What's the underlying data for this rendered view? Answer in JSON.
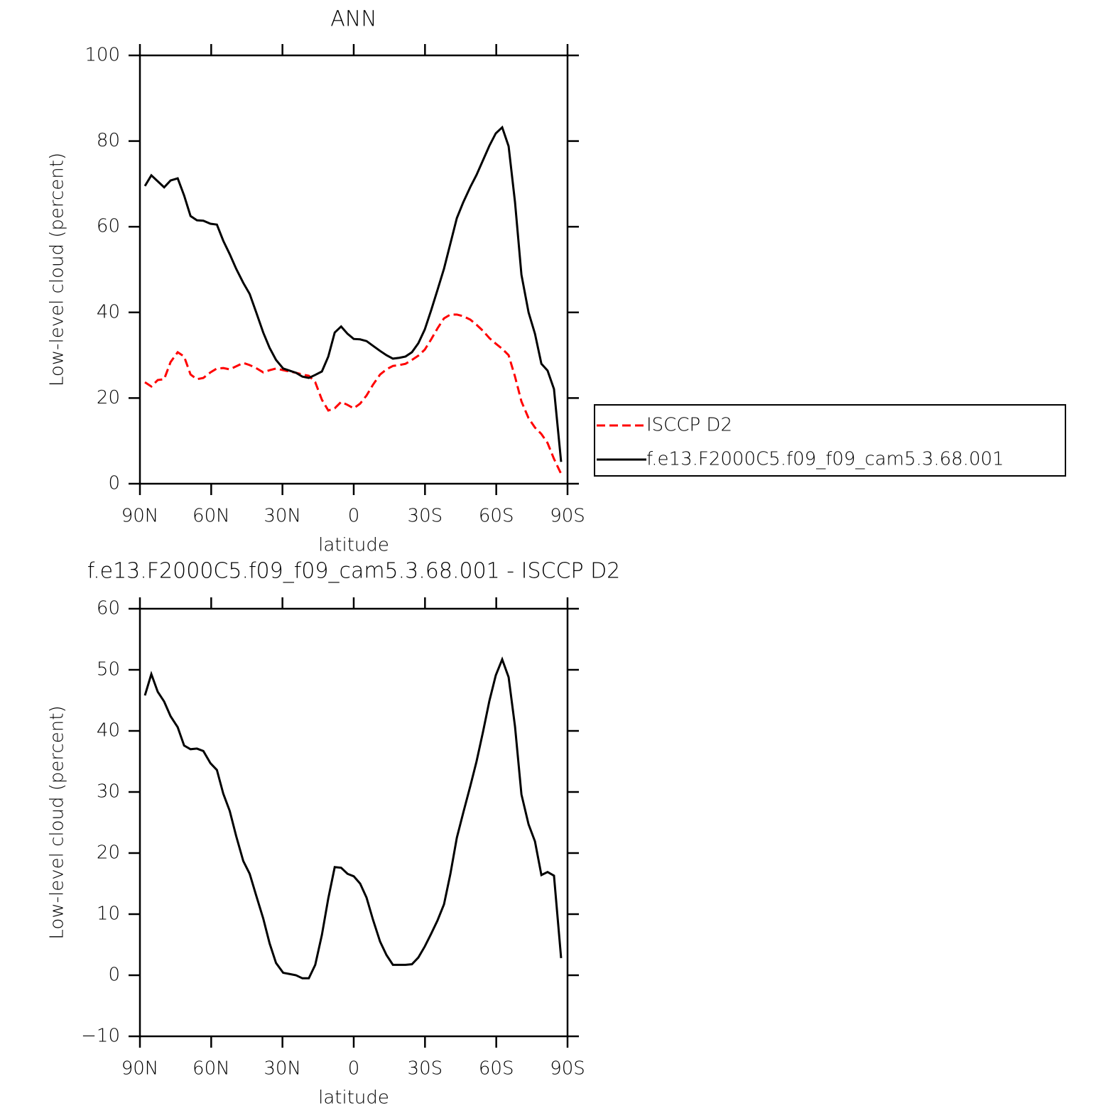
{
  "chart_data": [
    {
      "type": "line",
      "title": "ANN",
      "x_label": "latitude",
      "y_label": "Low-level cloud (percent)",
      "xlim": [
        90,
        -90
      ],
      "xticks": [
        {
          "value": 90,
          "label": "90N"
        },
        {
          "value": 60,
          "label": "60N"
        },
        {
          "value": 30,
          "label": "30N"
        },
        0,
        {
          "value": -30,
          "label": "30S"
        },
        {
          "value": -60,
          "label": "60S"
        },
        {
          "value": -90,
          "label": "90S"
        }
      ],
      "ylim": [
        0,
        100
      ],
      "yticks": [
        0,
        20,
        40,
        60,
        80,
        100
      ],
      "grid": false,
      "legend": "right",
      "x": [
        87.9,
        85.2,
        82.5,
        79.8,
        77.1,
        74.1,
        71.4,
        68.7,
        66.0,
        63.3,
        60.3,
        57.6,
        54.9,
        52.2,
        49.5,
        46.5,
        43.8,
        41.1,
        38.1,
        35.4,
        32.7,
        29.7,
        27.0,
        24.3,
        21.6,
        18.9,
        16.2,
        13.4,
        10.7,
        8.0,
        5.3,
        2.6,
        0.0,
        -2.7,
        -5.4,
        -8.1,
        -11.1,
        -13.8,
        -16.5,
        -19.2,
        -21.8,
        -24.5,
        -27.2,
        -29.9,
        -32.6,
        -35.3,
        -38.0,
        -40.7,
        -43.4,
        -46.1,
        -49.1,
        -51.7,
        -54.4,
        -57.1,
        -59.8,
        -62.5,
        -65.2,
        -67.9,
        -70.6,
        -73.6,
        -76.3,
        -79.0,
        -81.6,
        -84.3,
        -87.3
      ],
      "series": [
        {
          "name": "ISCCP D2",
          "color": "#ff0000",
          "dashed": true,
          "values": [
            23.7,
            22.7,
            24.2,
            24.4,
            28.4,
            30.7,
            29.7,
            25.5,
            24.4,
            24.7,
            26.0,
            26.9,
            27.0,
            26.7,
            27.4,
            28.2,
            27.7,
            27.0,
            26.0,
            26.5,
            26.9,
            26.5,
            26.2,
            25.9,
            25.5,
            25.2,
            23.7,
            19.6,
            17.1,
            17.6,
            19.1,
            18.4,
            17.6,
            18.7,
            20.6,
            23.1,
            25.5,
            26.7,
            27.5,
            27.7,
            28.0,
            28.9,
            29.9,
            31.3,
            33.7,
            36.3,
            38.6,
            39.5,
            39.5,
            39.1,
            38.3,
            37.1,
            35.7,
            34.0,
            32.7,
            31.5,
            30.0,
            25.0,
            19.2,
            15.3,
            13.1,
            11.6,
            9.5,
            5.8,
            2.3
          ]
        },
        {
          "name": "f.e13.F2000C5.f09_f09_cam5.3.68.001",
          "color": "#000000",
          "dashed": false,
          "values": [
            69.5,
            72.0,
            70.6,
            69.2,
            70.8,
            71.3,
            67.3,
            62.5,
            61.5,
            61.4,
            60.7,
            60.5,
            56.7,
            53.6,
            50.2,
            46.9,
            44.3,
            40.1,
            35.3,
            31.7,
            28.9,
            26.9,
            26.4,
            25.9,
            25.0,
            24.7,
            25.4,
            26.2,
            29.7,
            35.3,
            36.7,
            35.0,
            33.8,
            33.7,
            33.3,
            32.2,
            31.0,
            30.0,
            29.2,
            29.4,
            29.7,
            30.7,
            32.8,
            36.0,
            40.5,
            45.3,
            50.2,
            56.1,
            62.0,
            65.7,
            69.3,
            72.1,
            75.5,
            78.9,
            81.8,
            83.2,
            78.8,
            65.7,
            48.8,
            40.0,
            35.0,
            28.0,
            26.4,
            22.1,
            5.1
          ]
        }
      ]
    },
    {
      "type": "line",
      "title": "f.e13.F2000C5.f09_f09_cam5.3.68.001 - ISCCP D2",
      "x_label": "latitude",
      "y_label": "Low-level cloud (percent)",
      "xlim": [
        90,
        -90
      ],
      "xticks": [
        {
          "value": 90,
          "label": "90N"
        },
        {
          "value": 60,
          "label": "60N"
        },
        {
          "value": 30,
          "label": "30N"
        },
        0,
        {
          "value": -30,
          "label": "30S"
        },
        {
          "value": -60,
          "label": "60S"
        },
        {
          "value": -90,
          "label": "90S"
        }
      ],
      "ylim": [
        -10,
        60
      ],
      "yticks": [
        {
          "value": -10,
          "label": "−10"
        },
        0,
        10,
        20,
        30,
        40,
        50,
        60
      ],
      "grid": false,
      "x": [
        87.9,
        85.2,
        82.5,
        79.8,
        77.1,
        74.1,
        71.4,
        68.7,
        66.0,
        63.3,
        60.3,
        57.6,
        54.9,
        52.2,
        49.5,
        46.5,
        43.8,
        41.1,
        38.1,
        35.4,
        32.7,
        29.7,
        27.0,
        24.3,
        21.6,
        18.9,
        16.2,
        13.4,
        10.7,
        8.0,
        5.3,
        2.6,
        0.0,
        -2.7,
        -5.4,
        -8.1,
        -11.1,
        -13.8,
        -16.5,
        -19.2,
        -21.8,
        -24.5,
        -27.2,
        -29.9,
        -32.6,
        -35.3,
        -38.0,
        -40.7,
        -43.4,
        -46.1,
        -49.1,
        -51.7,
        -54.4,
        -57.1,
        -59.8,
        -62.5,
        -65.2,
        -67.9,
        -70.6,
        -73.6,
        -76.3,
        -79.0,
        -81.6,
        -84.3,
        -87.3
      ],
      "series": [
        {
          "color": "#000000",
          "dashed": false,
          "values": [
            45.8,
            49.3,
            46.4,
            44.8,
            42.4,
            40.6,
            37.6,
            37.0,
            37.1,
            36.7,
            34.7,
            33.6,
            29.7,
            26.9,
            22.8,
            18.7,
            16.6,
            13.1,
            9.3,
            5.2,
            2.0,
            0.4,
            0.2,
            0.0,
            -0.5,
            -0.5,
            1.7,
            6.6,
            12.6,
            17.7,
            17.6,
            16.6,
            16.2,
            15.0,
            12.7,
            9.1,
            5.5,
            3.3,
            1.7,
            1.7,
            1.7,
            1.8,
            2.9,
            4.7,
            6.8,
            9.0,
            11.6,
            16.6,
            22.5,
            26.6,
            31.0,
            35.0,
            39.8,
            44.9,
            49.1,
            51.7,
            48.8,
            40.7,
            29.6,
            24.7,
            21.9,
            16.4,
            16.9,
            16.3,
            2.8
          ]
        }
      ]
    }
  ]
}
